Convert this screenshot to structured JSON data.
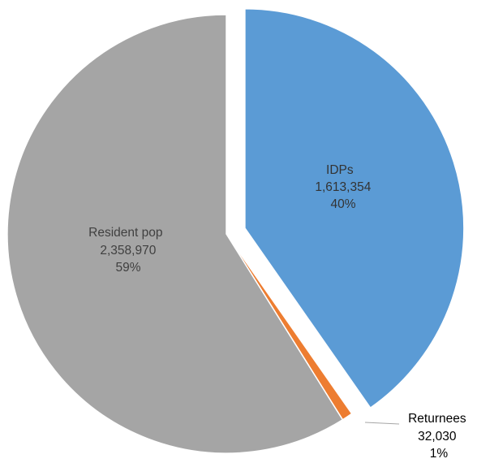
{
  "chart_data": {
    "type": "pie",
    "title": "",
    "slices": [
      {
        "label": "IDPs",
        "value": 1613354,
        "value_text": "1,613,354",
        "percent_text": "40%",
        "color": "#5b9bd5",
        "exploded": true
      },
      {
        "label": "Returnees",
        "value": 32030,
        "value_text": "32,030",
        "percent_text": "1%",
        "color": "#ed7d31",
        "exploded": false
      },
      {
        "label": "Resident pop",
        "value": 2358970,
        "value_text": "2,358,970",
        "percent_text": "59%",
        "color": "#a5a5a5",
        "exploded": false
      }
    ],
    "start_angle_deg": 0,
    "direction": "clockwise",
    "legend": "none",
    "data_labels": "category, value, percent"
  }
}
